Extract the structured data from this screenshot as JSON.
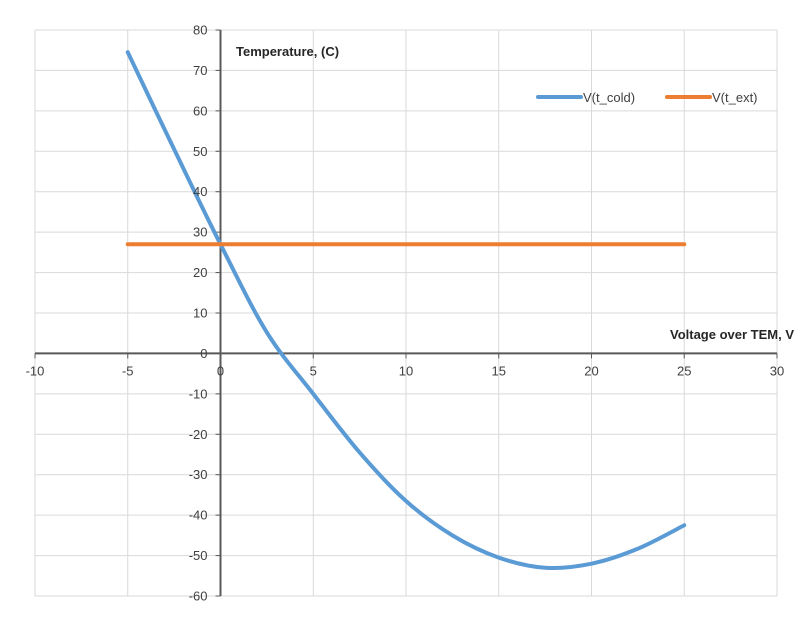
{
  "chart_data": {
    "type": "scatter",
    "xlabel": "Voltage over TEM, V",
    "ylabel": "Temperature, (C)",
    "xlim": [
      -10,
      30
    ],
    "ylim": [
      -60,
      80
    ],
    "x_ticks": [
      -10,
      -5,
      0,
      5,
      10,
      15,
      20,
      25,
      30
    ],
    "y_ticks": [
      -60,
      -50,
      -40,
      -30,
      -20,
      -10,
      0,
      10,
      20,
      30,
      40,
      50,
      60,
      70,
      80
    ],
    "grid": true,
    "legend": "top-right",
    "series": [
      {
        "name": "V(t_cold)",
        "color": "#5B9BD5",
        "points": [
          [
            -5,
            74.5
          ],
          [
            -2.5,
            50.5
          ],
          [
            0,
            27.0
          ],
          [
            2.5,
            5.2
          ],
          [
            5,
            -10.0
          ],
          [
            7.5,
            -24.5
          ],
          [
            10,
            -36.5
          ],
          [
            12.5,
            -45.0
          ],
          [
            15,
            -50.5
          ],
          [
            17.5,
            -53.0
          ],
          [
            20,
            -52.0
          ],
          [
            22.5,
            -48.3
          ],
          [
            25,
            -42.5
          ]
        ]
      },
      {
        "name": "V(t_ext)",
        "color": "#ED7D31",
        "points": [
          [
            -5,
            27
          ],
          [
            25,
            27
          ]
        ]
      }
    ]
  }
}
